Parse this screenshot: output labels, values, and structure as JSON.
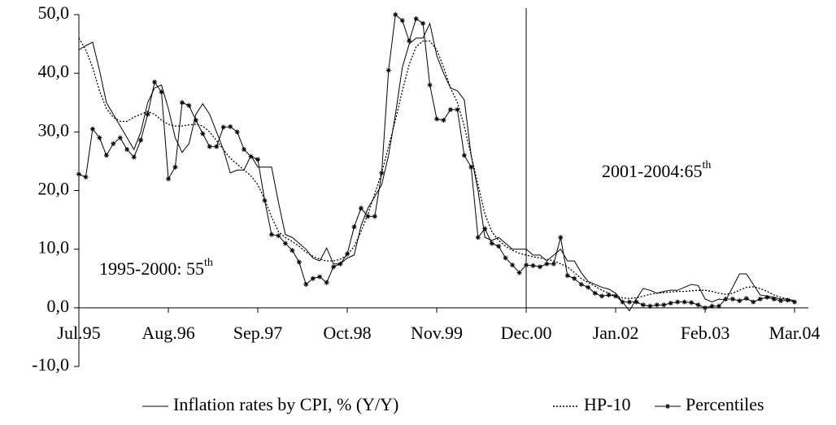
{
  "chart_data": {
    "type": "line",
    "x": [
      0,
      1,
      2,
      3,
      4,
      5,
      6,
      7,
      8,
      9,
      10,
      11,
      12,
      13,
      14,
      15,
      16,
      17,
      18,
      19,
      20,
      21,
      22,
      23,
      24,
      25,
      26,
      27,
      28,
      29,
      30,
      31,
      32,
      33,
      34,
      35,
      36,
      37,
      38,
      39,
      40,
      41,
      42,
      43,
      44,
      45,
      46,
      47,
      48,
      49,
      50,
      51,
      52,
      53,
      54,
      55,
      56,
      57,
      58,
      59,
      60,
      61,
      62,
      63,
      64,
      65,
      66,
      67,
      68,
      69,
      70,
      71,
      72,
      73,
      74,
      75,
      76,
      77,
      78,
      79,
      80,
      81,
      82,
      83,
      84,
      85,
      86,
      87,
      88,
      89,
      90,
      91,
      92,
      93,
      94,
      95,
      96,
      97,
      98,
      99,
      100,
      101,
      102,
      103,
      104
    ],
    "series": [
      {
        "name": "Inflation rates by CPI, % (Y/Y)",
        "color": "#000000",
        "dash": "solid",
        "marker": "none",
        "values": [
          44,
          44.7,
          45.3,
          40.5,
          35,
          33,
          31,
          29,
          27,
          30,
          35,
          37.5,
          38,
          34,
          29,
          26.5,
          28,
          33,
          34.8,
          33,
          30,
          27,
          23,
          23.5,
          23.5,
          26,
          24,
          24,
          24,
          18,
          12.5,
          12,
          11,
          10,
          8.5,
          8,
          10.2,
          7.5,
          7.5,
          8.5,
          9,
          14,
          17,
          19,
          21,
          26,
          33,
          41,
          45,
          46,
          46,
          48.5,
          43,
          40,
          37.5,
          37,
          35.5,
          26,
          20,
          12,
          11.5,
          12,
          11,
          10,
          10,
          10,
          9,
          9,
          8,
          9,
          10,
          8,
          8,
          6,
          4.5,
          4,
          3.5,
          3.2,
          2.5,
          1,
          -0.5,
          1.5,
          3.3,
          3,
          2.5,
          2.8,
          3,
          3,
          3.5,
          4,
          3.8,
          1.5,
          1,
          1.5,
          1.3,
          3.5,
          5.8,
          5.8,
          4,
          2.2,
          2,
          1.8,
          1.5,
          1.5,
          1.2
        ]
      },
      {
        "name": "HP-10",
        "color": "#000000",
        "dash": "dotted",
        "marker": "none",
        "values": [
          46,
          44,
          41,
          37,
          34,
          32.5,
          31.8,
          31.8,
          32.5,
          33,
          33.5,
          33,
          32,
          31.3,
          31,
          31,
          31.2,
          31.3,
          31,
          30,
          28.5,
          27,
          25.5,
          24.5,
          23.5,
          22.5,
          21,
          18.5,
          15.5,
          13,
          12,
          11.3,
          10.5,
          9.5,
          8.8,
          8.3,
          8,
          8,
          8.3,
          9,
          10.5,
          13,
          16,
          19.5,
          23,
          27.5,
          32,
          37,
          41.5,
          44.5,
          45.5,
          45.5,
          44,
          41,
          37.5,
          35,
          31,
          26,
          21,
          16,
          13,
          11.5,
          10.5,
          9.8,
          9.3,
          9,
          8.7,
          8.5,
          8.3,
          8,
          7.5,
          7,
          6,
          5,
          4.3,
          3.7,
          3,
          2.5,
          2,
          1.7,
          1.6,
          1.7,
          2,
          2.3,
          2.5,
          2.6,
          2.7,
          2.8,
          2.8,
          2.9,
          3,
          3,
          2.8,
          2.5,
          2.3,
          2.5,
          3,
          3.5,
          3.6,
          3.3,
          2.8,
          2.2,
          1.8,
          1.5,
          1.2
        ]
      },
      {
        "name": "Percentiles",
        "color": "#000000",
        "dash": "solid",
        "marker": "star",
        "values": [
          22.8,
          22.3,
          30.5,
          29,
          26,
          28,
          29,
          27,
          25.7,
          28.6,
          33,
          38.5,
          36.8,
          22,
          24,
          35,
          34.5,
          32,
          29.7,
          27.5,
          27.5,
          30.8,
          30.9,
          30,
          27,
          25.8,
          25.3,
          18.3,
          12.5,
          12.3,
          11,
          9.8,
          7.8,
          4,
          5,
          5.3,
          4.3,
          7,
          7.5,
          9.2,
          13.8,
          17,
          15.6,
          15.6,
          23,
          40.5,
          50,
          49,
          45.5,
          49.3,
          48.5,
          38,
          32.2,
          32,
          33.8,
          33.8,
          26,
          24,
          12,
          13.5,
          11,
          10.5,
          8.5,
          7.3,
          6,
          7.3,
          7.2,
          7,
          7.5,
          7.5,
          12,
          5.5,
          5,
          4,
          3.5,
          2.5,
          2,
          2.2,
          2,
          1,
          1,
          1,
          0.5,
          0.3,
          0.5,
          0.5,
          0.8,
          1,
          1,
          0.9,
          0.5,
          0,
          0.3,
          0.3,
          1.5,
          1.5,
          1.2,
          1.6,
          1,
          1.5,
          1.8,
          1.5,
          1.2,
          1.3,
          1
        ]
      }
    ],
    "xlim": [
      0,
      106
    ],
    "xticks": [
      {
        "value": 0,
        "label": "Jul.95"
      },
      {
        "value": 13,
        "label": "Aug.96"
      },
      {
        "value": 26,
        "label": "Sep.97"
      },
      {
        "value": 39,
        "label": "Oct.98"
      },
      {
        "value": 52,
        "label": "Nov.99"
      },
      {
        "value": 65,
        "label": "Dec.00"
      },
      {
        "value": 78,
        "label": "Jan.02"
      },
      {
        "value": 91,
        "label": "Feb.03"
      },
      {
        "value": 104,
        "label": "Mar.04"
      }
    ],
    "ylim": [
      -10,
      50
    ],
    "yticks": [
      {
        "value": -10,
        "label": "-10,0"
      },
      {
        "value": 0,
        "label": "0,0"
      },
      {
        "value": 10,
        "label": "10,0"
      },
      {
        "value": 20,
        "label": "20,0"
      },
      {
        "value": 30,
        "label": "30,0"
      },
      {
        "value": 40,
        "label": "40,0"
      },
      {
        "value": 50,
        "label": "50,0"
      }
    ],
    "vertical_line_x": 65,
    "annotations": [
      {
        "text": "1995-2000: 55",
        "sup": "th"
      },
      {
        "text": "2001-2004:65",
        "sup": "th"
      }
    ],
    "legend": "bottom"
  }
}
